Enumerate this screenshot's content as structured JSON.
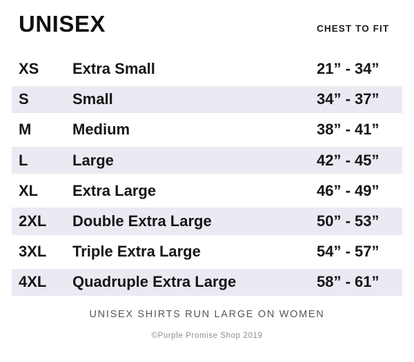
{
  "header": {
    "title": "UNISEX",
    "column_header": "CHEST TO FIT"
  },
  "table": {
    "rows": [
      {
        "code": "XS",
        "name": "Extra Small",
        "range": "21” - 34”"
      },
      {
        "code": "S",
        "name": "Small",
        "range": "34” - 37”"
      },
      {
        "code": "M",
        "name": "Medium",
        "range": "38” - 41”"
      },
      {
        "code": "L",
        "name": "Large",
        "range": "42” - 45”"
      },
      {
        "code": "XL",
        "name": "Extra Large",
        "range": "46” - 49”"
      },
      {
        "code": "2XL",
        "name": "Double Extra Large",
        "range": "50” - 53”"
      },
      {
        "code": "3XL",
        "name": "Triple Extra Large",
        "range": "54” - 57”"
      },
      {
        "code": "4XL",
        "name": "Quadruple Extra Large",
        "range": "58” - 61”"
      }
    ]
  },
  "footer": {
    "note": "UNISEX SHIRTS RUN LARGE ON WOMEN",
    "copyright": "©Purple Promise Shop 2019"
  },
  "colors": {
    "row_shade": "#EDE9F2",
    "text": "#161616",
    "note_gray": "#56565B",
    "copyright_gray": "#8C8C90",
    "background": "#FFFFFF"
  }
}
